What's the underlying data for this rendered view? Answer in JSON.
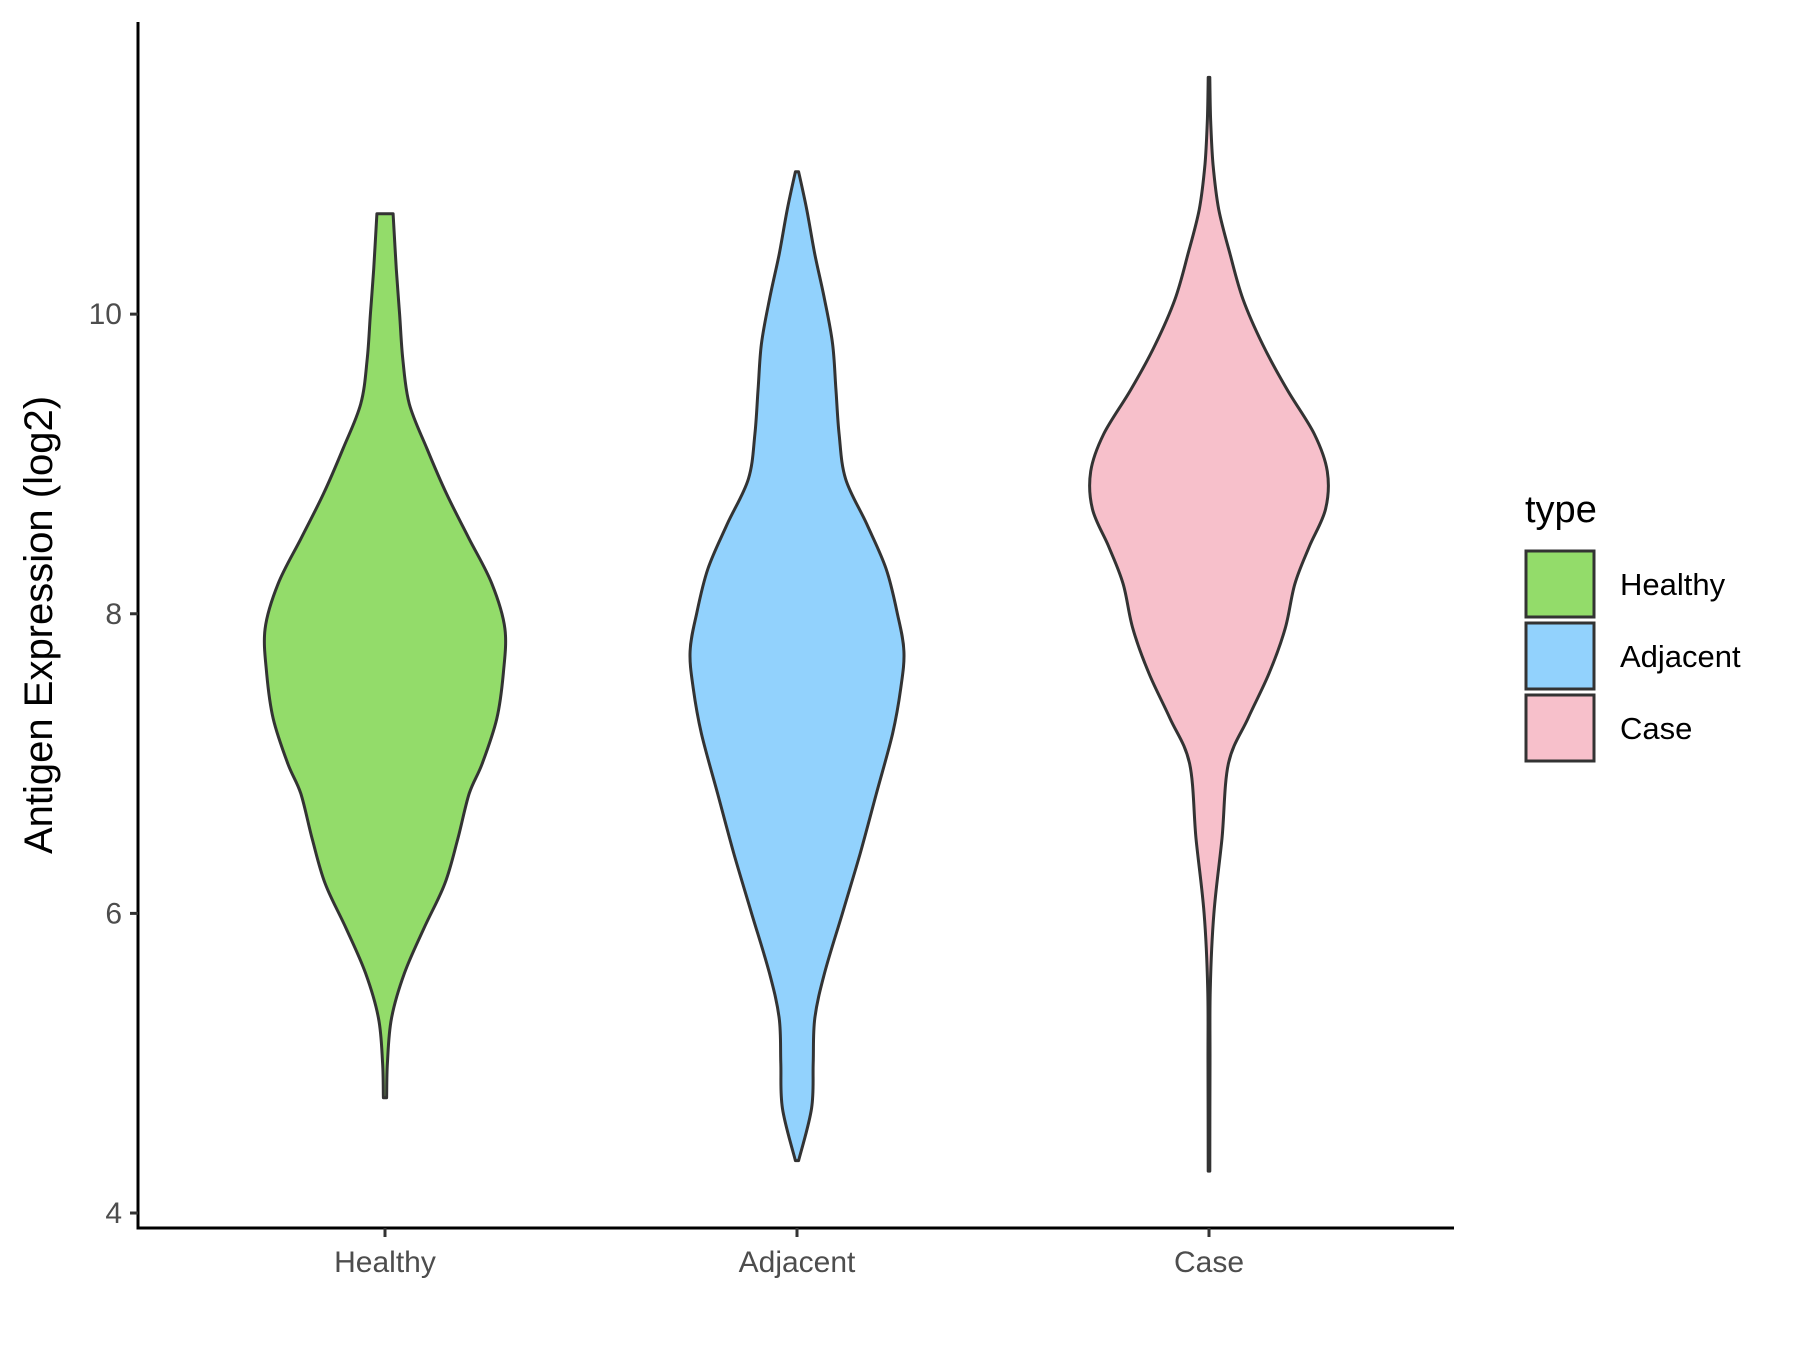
{
  "chart_data": {
    "type": "violin",
    "title": "",
    "xlabel": "",
    "ylabel": "Antigen Expression (log2)",
    "ylim": [
      3.9,
      11.95
    ],
    "yticks": [
      4,
      6,
      8,
      10
    ],
    "grid": false,
    "legend": {
      "title": "type",
      "placement": "right"
    },
    "categories": [
      "Healthy",
      "Adjacent",
      "Case"
    ],
    "series": [
      {
        "name": "Healthy",
        "color": "#93dc6a",
        "min": 4.77,
        "max": 10.67,
        "density_y": [
          4.77,
          5.0,
          5.3,
          5.6,
          5.9,
          6.2,
          6.5,
          6.8,
          7.0,
          7.3,
          7.6,
          7.9,
          8.2,
          8.5,
          8.8,
          9.1,
          9.4,
          9.7,
          10.0,
          10.3,
          10.67
        ],
        "density_halfwidth": [
          0.01,
          0.015,
          0.04,
          0.12,
          0.24,
          0.37,
          0.45,
          0.52,
          0.6,
          0.69,
          0.73,
          0.74,
          0.66,
          0.52,
          0.38,
          0.26,
          0.15,
          0.11,
          0.09,
          0.07,
          0.05
        ]
      },
      {
        "name": "Adjacent",
        "color": "#92d2fd",
        "min": 4.35,
        "max": 10.95,
        "density_y": [
          4.35,
          4.7,
          5.0,
          5.3,
          5.6,
          6.0,
          6.4,
          6.8,
          7.2,
          7.5,
          7.75,
          8.0,
          8.3,
          8.6,
          8.9,
          9.2,
          9.5,
          9.8,
          10.1,
          10.4,
          10.7,
          10.95
        ],
        "density_halfwidth": [
          0.01,
          0.09,
          0.1,
          0.11,
          0.17,
          0.28,
          0.39,
          0.49,
          0.59,
          0.64,
          0.66,
          0.62,
          0.55,
          0.43,
          0.3,
          0.26,
          0.24,
          0.22,
          0.17,
          0.11,
          0.06,
          0.01
        ]
      },
      {
        "name": "Case",
        "color": "#f7c0cb",
        "min": 4.28,
        "max": 11.58,
        "density_y": [
          4.28,
          5.0,
          5.5,
          6.0,
          6.5,
          7.0,
          7.3,
          7.6,
          7.9,
          8.2,
          8.45,
          8.7,
          8.95,
          9.2,
          9.5,
          9.8,
          10.1,
          10.4,
          10.7,
          11.0,
          11.3,
          11.58
        ],
        "density_halfwidth": [
          0.005,
          0.006,
          0.008,
          0.03,
          0.08,
          0.12,
          0.24,
          0.37,
          0.47,
          0.53,
          0.62,
          0.72,
          0.73,
          0.65,
          0.48,
          0.33,
          0.21,
          0.13,
          0.06,
          0.025,
          0.01,
          0.005
        ]
      }
    ]
  }
}
